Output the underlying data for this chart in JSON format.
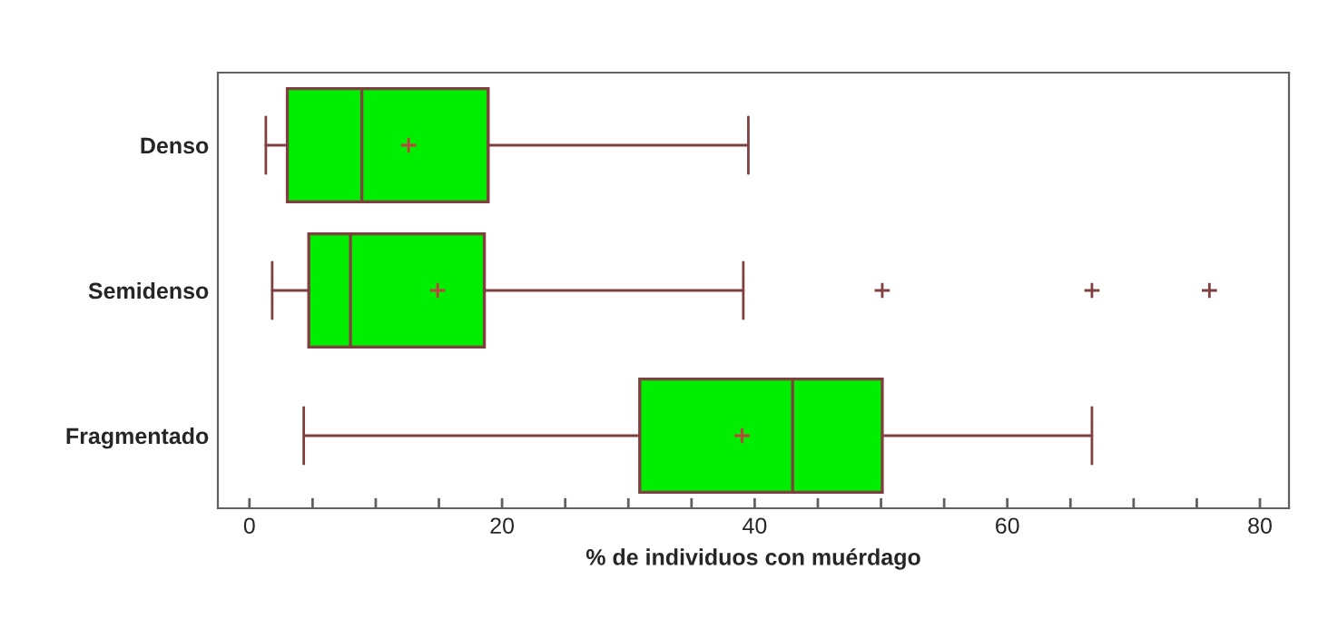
{
  "chart_data": {
    "type": "box",
    "orientation": "horizontal",
    "categories": [
      "Denso",
      "Semidenso",
      "Fragmentado"
    ],
    "xlabel": "% de individuos con muérdago",
    "color": "#00ee00",
    "boxes": [
      {
        "low": 1.3,
        "q1": 3.0,
        "median": 8.9,
        "q3": 18.9,
        "high": 39.5,
        "mean": 12.6
      },
      {
        "low": 1.8,
        "q1": 4.7,
        "median": 8.0,
        "q3": 18.6,
        "high": 39.1,
        "mean": 14.9,
        "outliers": [
          50.1,
          66.7,
          76.0
        ]
      },
      {
        "low": 4.3,
        "q1": 30.9,
        "median": 43.0,
        "q3": 50.1,
        "high": 66.7,
        "mean": 39.0
      }
    ],
    "xlim": [
      -2.5,
      82.3
    ],
    "xticks": [
      0,
      {
        "value": 5,
        "label": null
      },
      {
        "value": 10,
        "label": null
      },
      {
        "value": 15,
        "label": null
      },
      20,
      {
        "value": 25,
        "label": null
      },
      {
        "value": 30,
        "label": null
      },
      {
        "value": 35,
        "label": null
      },
      40,
      {
        "value": 45,
        "label": null
      },
      {
        "value": 50,
        "label": null
      },
      {
        "value": 55,
        "label": null
      },
      60,
      {
        "value": 65,
        "label": null
      },
      {
        "value": 70,
        "label": null
      },
      {
        "value": 75,
        "label": null
      },
      80
    ],
    "grid": false,
    "marker": "cross"
  }
}
